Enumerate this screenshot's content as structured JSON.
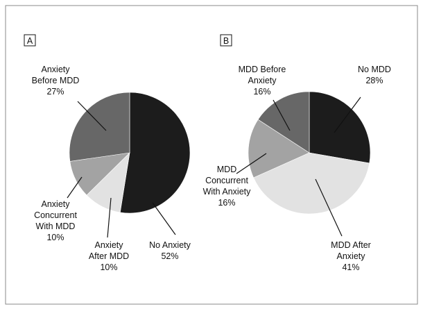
{
  "chart_data": [
    {
      "type": "pie",
      "title": "A",
      "categories": [
        "No Anxiety",
        "Anxiety After MDD",
        "Anxiety Concurrent With MDD",
        "Anxiety Before MDD"
      ],
      "values": [
        52,
        10,
        10,
        27
      ],
      "value_labels": [
        "52%",
        "10%",
        "10%",
        "27%"
      ],
      "colors": [
        "#1c1c1c",
        "#e2e2e2",
        "#a3a3a3",
        "#676767"
      ]
    },
    {
      "type": "pie",
      "title": "B",
      "categories": [
        "No MDD",
        "MDD After Anxiety",
        "MDD Concurrent With Anxiety",
        "MDD Before Anxiety"
      ],
      "values": [
        28,
        41,
        16,
        16
      ],
      "value_labels": [
        "28%",
        "41%",
        "16%",
        "16%"
      ],
      "colors": [
        "#1c1c1c",
        "#e2e2e2",
        "#a3a3a3",
        "#676767"
      ]
    }
  ]
}
